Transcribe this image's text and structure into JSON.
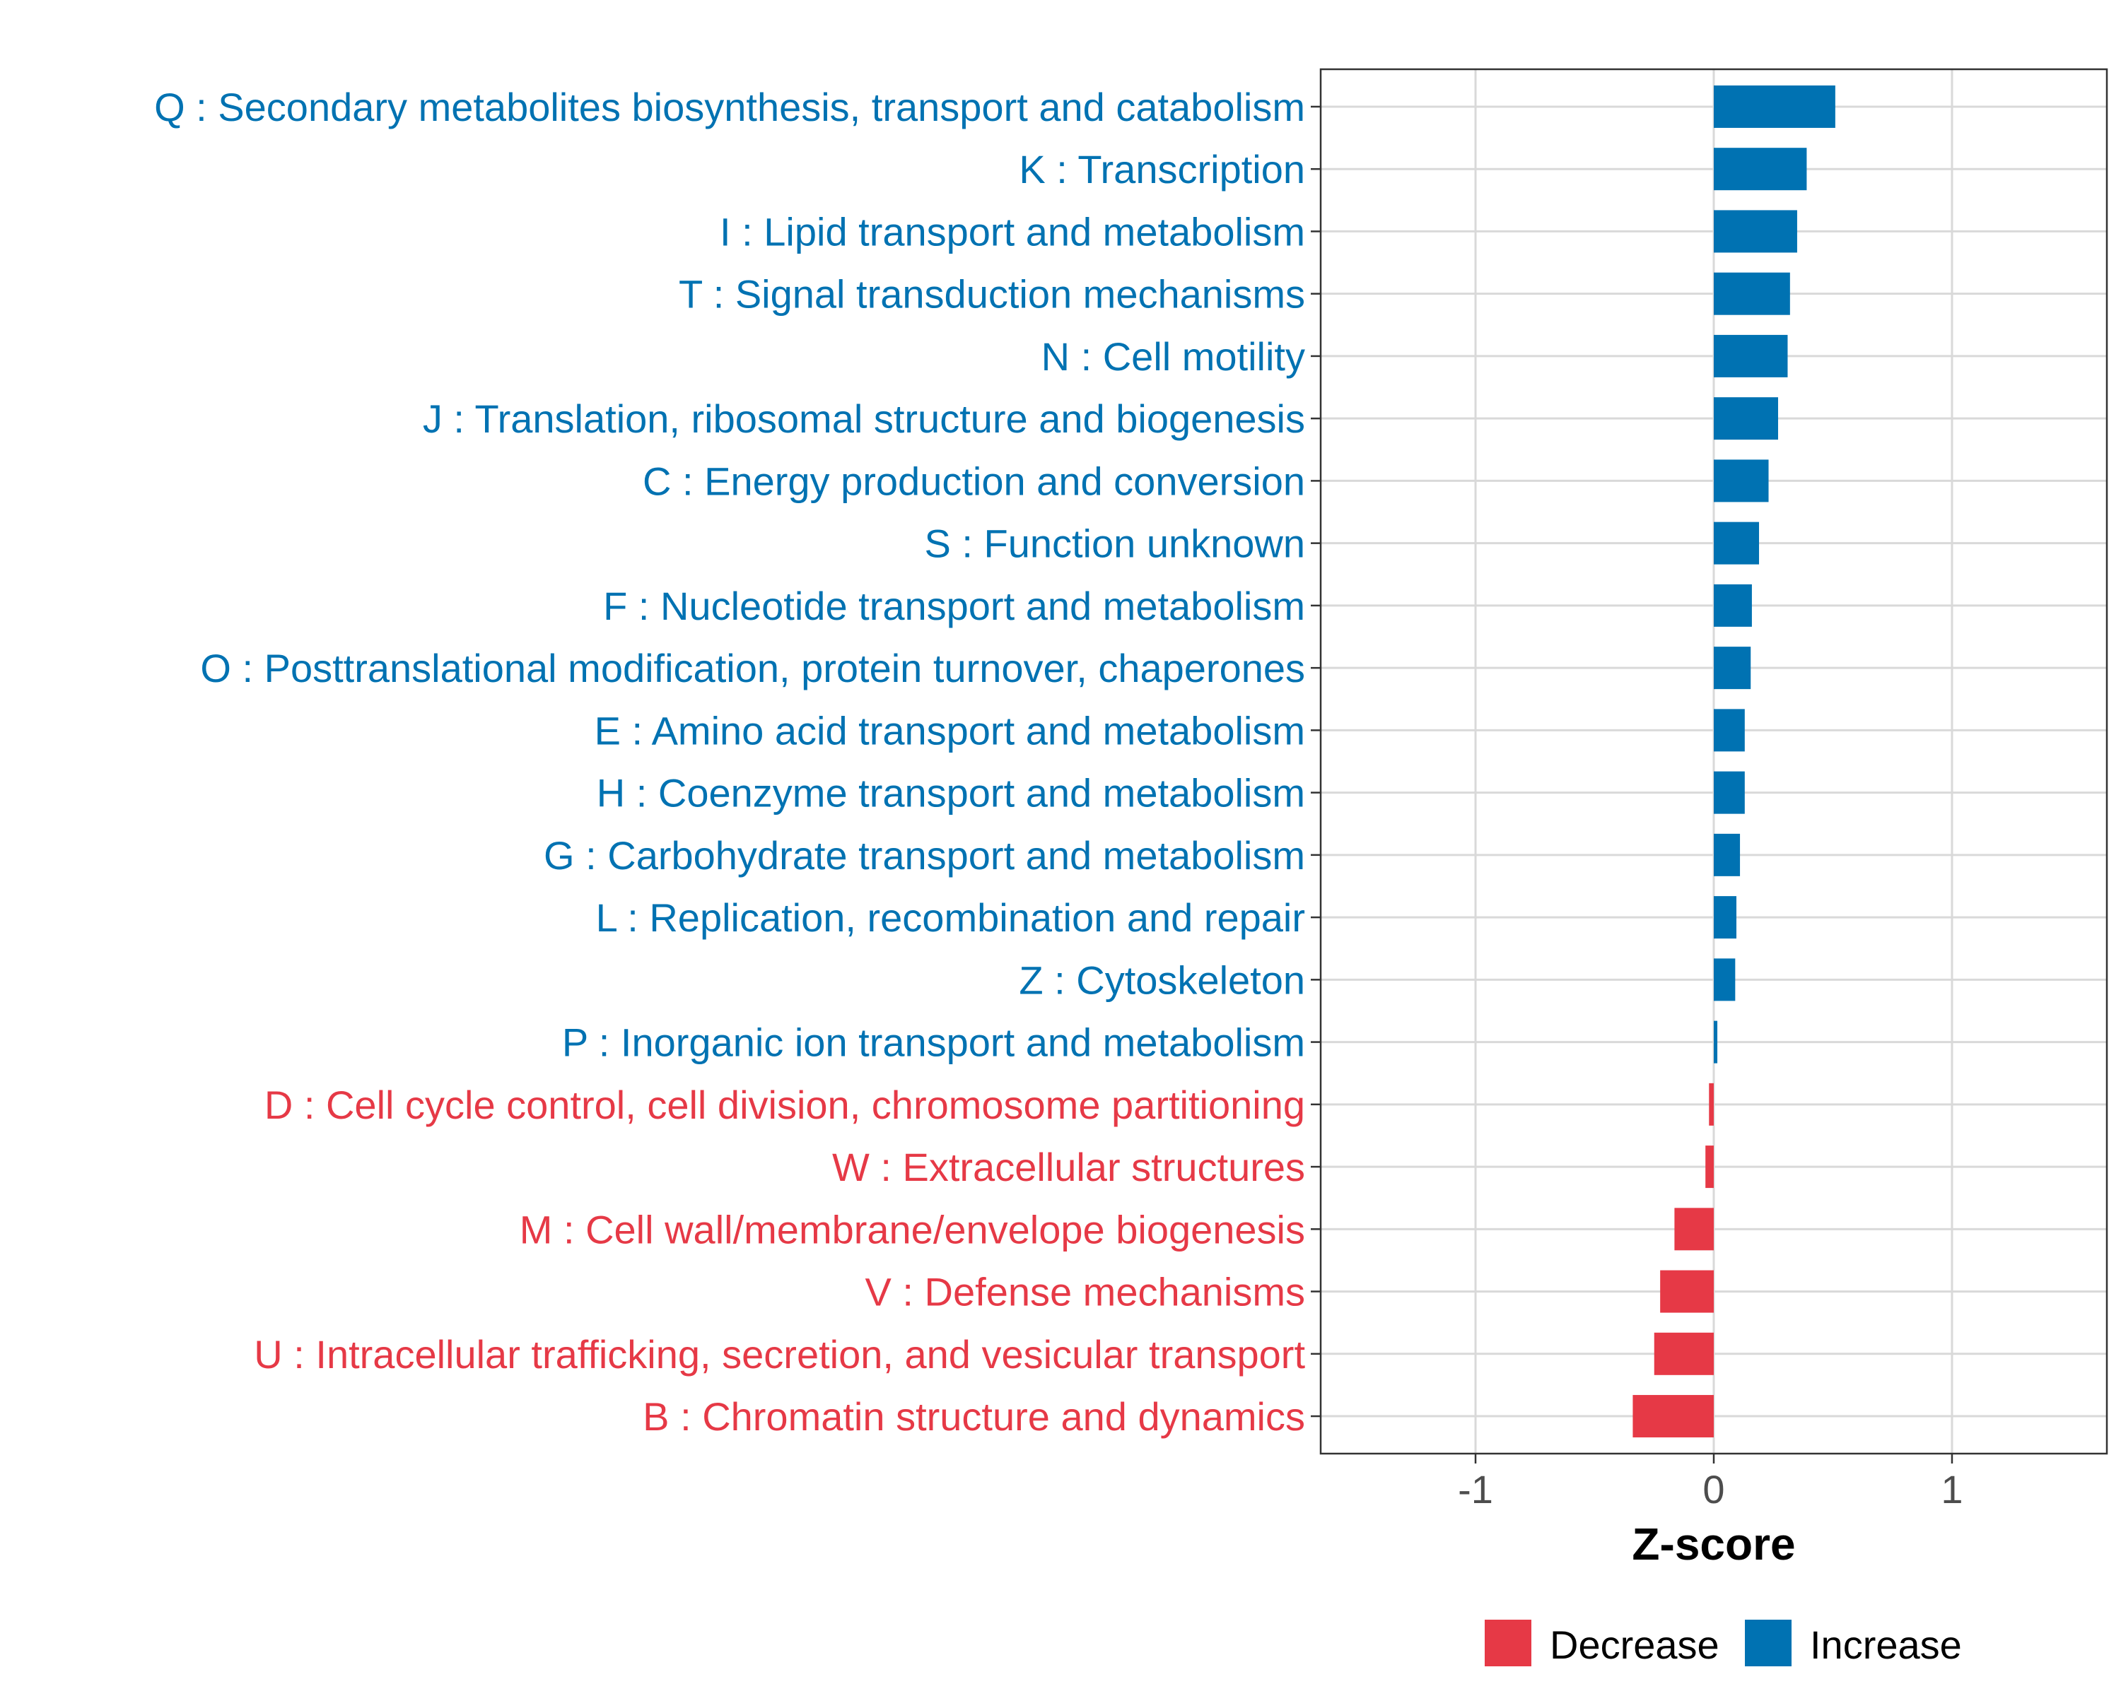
{
  "chart_data": {
    "type": "bar",
    "orientation": "horizontal",
    "title": "",
    "xlabel": "Z-score",
    "ylabel": "",
    "xlim": [
      -1.65,
      1.65
    ],
    "x_ticks": [
      -1,
      0,
      1
    ],
    "x_tick_labels": [
      "-1",
      "0",
      "1"
    ],
    "grid": true,
    "legend_position": "bottom",
    "colors": {
      "Increase": "#0072b2",
      "Decrease": "#e63946"
    },
    "legend": [
      {
        "name": "Decrease",
        "color": "#e63946"
      },
      {
        "name": "Increase",
        "color": "#0072b2"
      }
    ],
    "categories": [
      "Q : Secondary metabolites biosynthesis, transport and catabolism",
      "K : Transcription",
      "I : Lipid transport and metabolism",
      "T : Signal transduction mechanisms",
      "N : Cell motility",
      "J : Translation, ribosomal structure and biogenesis",
      "C : Energy production and conversion",
      "S : Function unknown",
      "F : Nucleotide transport and metabolism",
      "O : Posttranslational modification, protein turnover, chaperones",
      "E : Amino acid transport and metabolism",
      "H : Coenzyme transport and metabolism",
      "G : Carbohydrate transport and metabolism",
      "L : Replication, recombination and repair",
      "Z : Cytoskeleton",
      "P : Inorganic ion transport and metabolism",
      "D : Cell cycle control, cell division, chromosome partitioning",
      "W : Extracellular structures",
      "M : Cell wall/membrane/envelope biogenesis",
      "V : Defense mechanisms",
      "U : Intracellular trafficking, secretion, and vesicular transport",
      "B : Chromatin structure and dynamics"
    ],
    "values": [
      0.51,
      0.39,
      0.35,
      0.32,
      0.31,
      0.27,
      0.23,
      0.19,
      0.16,
      0.155,
      0.13,
      0.13,
      0.11,
      0.095,
      0.09,
      0.015,
      -0.02,
      -0.035,
      -0.165,
      -0.225,
      -0.25,
      -0.34
    ],
    "groups": [
      "Increase",
      "Increase",
      "Increase",
      "Increase",
      "Increase",
      "Increase",
      "Increase",
      "Increase",
      "Increase",
      "Increase",
      "Increase",
      "Increase",
      "Increase",
      "Increase",
      "Increase",
      "Increase",
      "Decrease",
      "Decrease",
      "Decrease",
      "Decrease",
      "Decrease",
      "Decrease"
    ]
  }
}
